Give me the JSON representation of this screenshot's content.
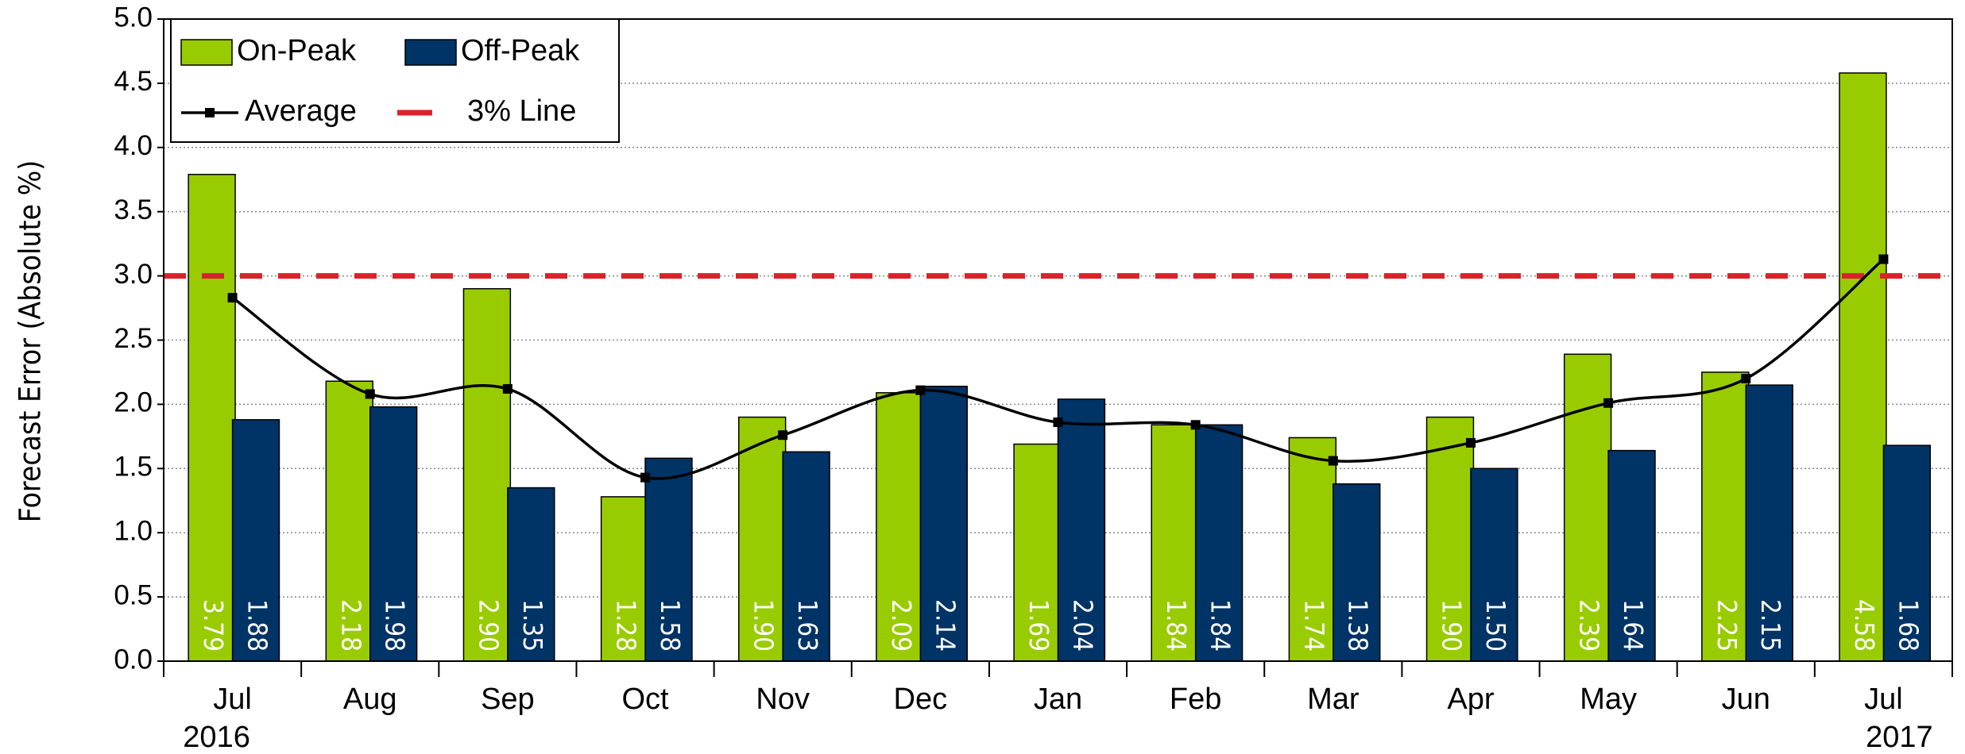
{
  "chart_data": {
    "type": "bar",
    "y_label": "Forecast Error  (Absolute %)",
    "categories": [
      "Jul",
      "Aug",
      "Sep",
      "Oct",
      "Nov",
      "Dec",
      "Jan",
      "Feb",
      "Mar",
      "Apr",
      "May",
      "Jun",
      "Jul"
    ],
    "category_years": [
      "2016",
      null,
      null,
      null,
      null,
      null,
      null,
      null,
      null,
      null,
      null,
      null,
      "2017"
    ],
    "series": [
      {
        "name": "On-Peak",
        "color": "#99cc00",
        "values": [
          3.79,
          2.18,
          2.9,
          1.28,
          1.9,
          2.09,
          1.69,
          1.84,
          1.74,
          1.9,
          2.39,
          2.25,
          4.58
        ],
        "value_labels": [
          "3.79",
          "2.18",
          "2.90",
          "1.28",
          "1.90",
          "2.09",
          "1.69",
          "1.84",
          "1.74",
          "1.90",
          "2.39",
          "2.25",
          "4.58"
        ]
      },
      {
        "name": "Off-Peak",
        "color": "#003366",
        "values": [
          1.88,
          1.98,
          1.35,
          1.58,
          1.63,
          2.14,
          2.04,
          1.84,
          1.38,
          1.5,
          1.64,
          2.15,
          1.68
        ],
        "value_labels": [
          "1.88",
          "1.98",
          "1.35",
          "1.58",
          "1.63",
          "2.14",
          "2.04",
          "1.84",
          "1.38",
          "1.50",
          "1.64",
          "2.15",
          "1.68"
        ]
      },
      {
        "name": "Average",
        "type": "line",
        "color": "#000000",
        "values": [
          2.83,
          2.08,
          2.12,
          1.43,
          1.76,
          2.11,
          1.86,
          1.84,
          1.56,
          1.7,
          2.01,
          2.2,
          3.13
        ]
      }
    ],
    "reference_line": {
      "name": "3% Line",
      "value": 3,
      "color": "#d9232a"
    },
    "ylim": [
      0,
      5
    ],
    "yticks": [
      {
        "value": 0,
        "label": "0.0"
      },
      {
        "value": 0.5,
        "label": "0.5"
      },
      {
        "value": 1,
        "label": "1.0"
      },
      {
        "value": 1.5,
        "label": "1.5"
      },
      {
        "value": 2,
        "label": "2.0"
      },
      {
        "value": 2.5,
        "label": "2.5"
      },
      {
        "value": 3,
        "label": "3.0"
      },
      {
        "value": 3.5,
        "label": "3.5"
      },
      {
        "value": 4,
        "label": "4.0"
      },
      {
        "value": 4.5,
        "label": "4.5"
      },
      {
        "value": 5,
        "label": "5.0"
      }
    ],
    "grid": true,
    "legend": "top-left"
  }
}
